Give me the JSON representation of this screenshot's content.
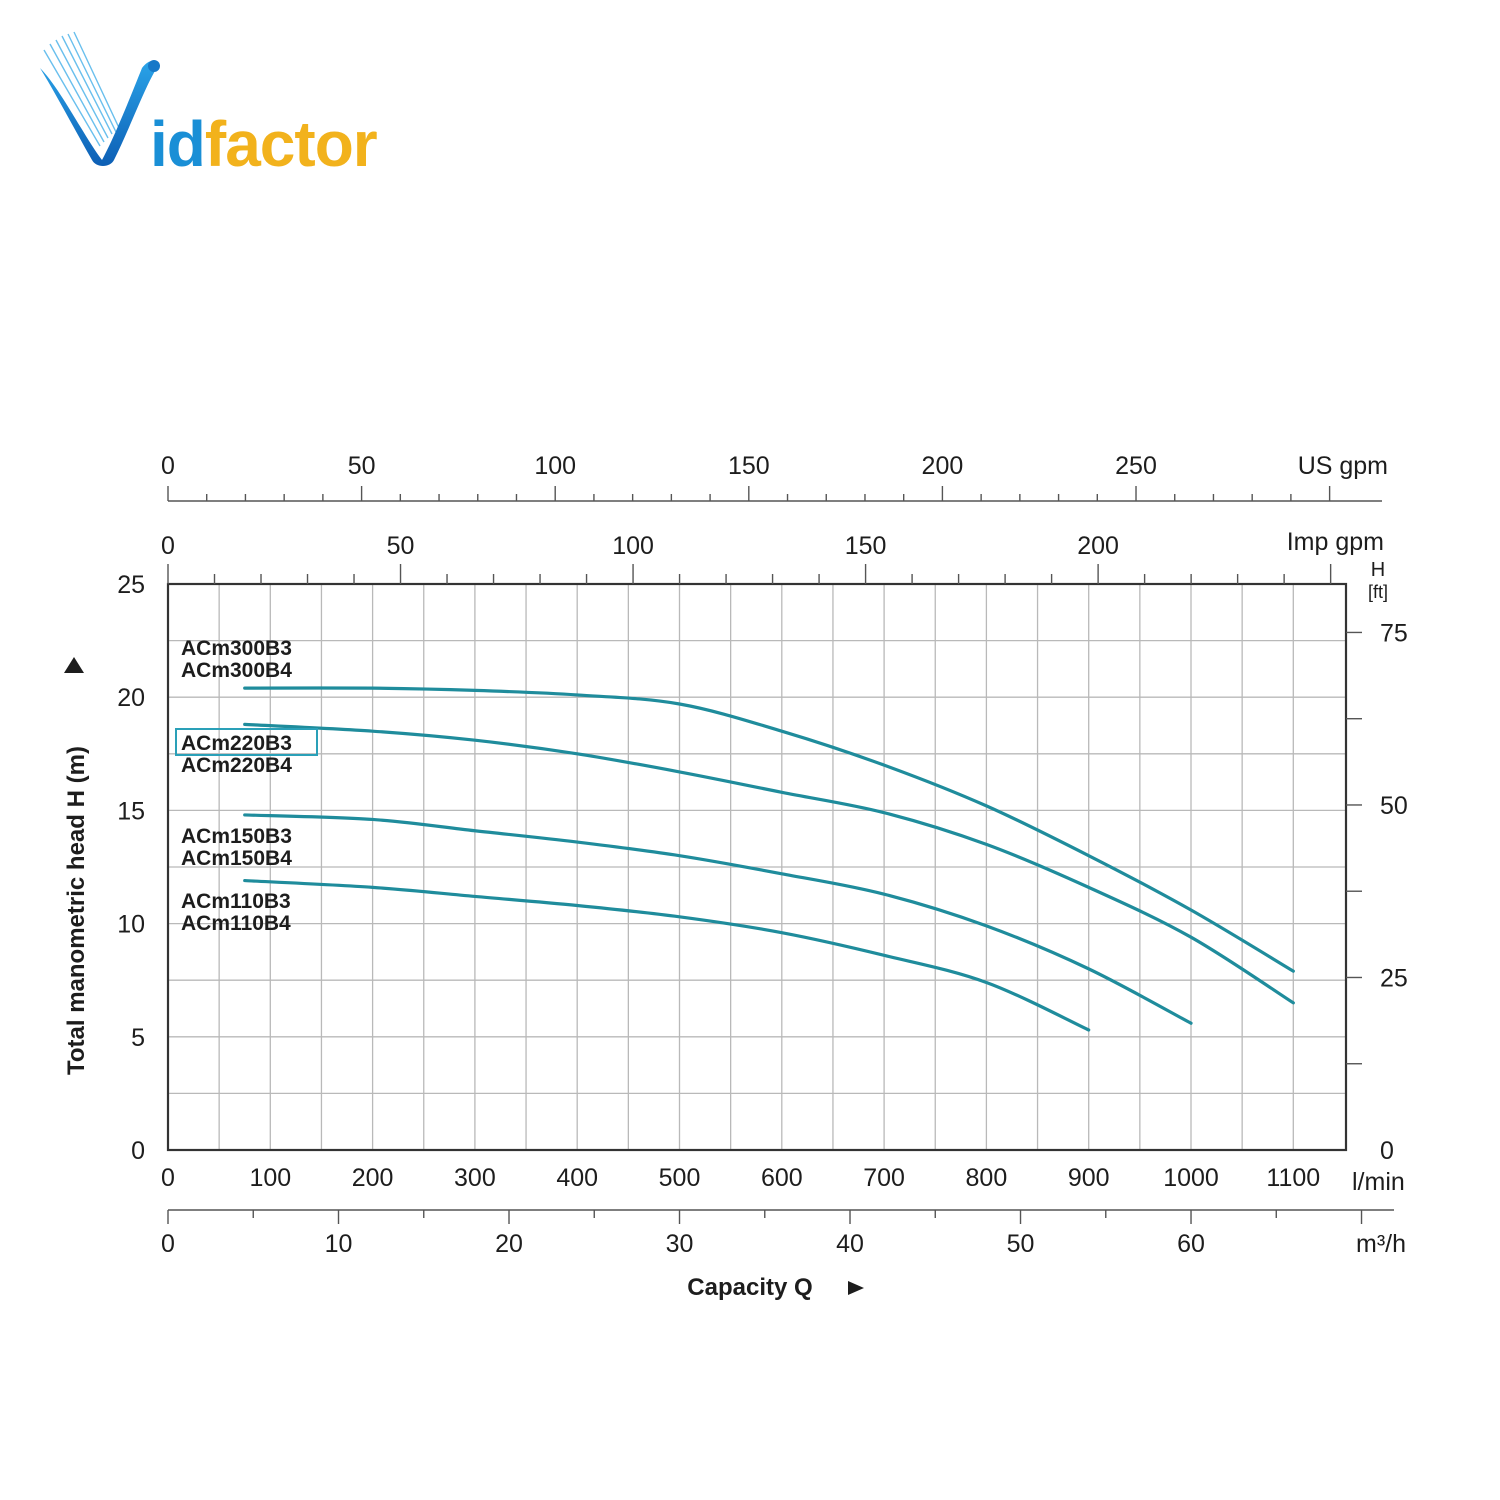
{
  "logo": {
    "text_i": "id",
    "text_rest": "factor",
    "colors": {
      "blue": "#1a8fd6",
      "yellow": "#f2b21c"
    }
  },
  "chart_data": {
    "type": "line",
    "title": "",
    "ylabel": "Total manometric head H (m)",
    "xlabel": "Capacity Q",
    "x_unit": "l/min",
    "xlim": [
      0,
      1150
    ],
    "ylim": [
      0,
      25
    ],
    "x_ticks": [
      "0",
      "100",
      "200",
      "300",
      "400",
      "500",
      "600",
      "700",
      "800",
      "900",
      "1000",
      "1100"
    ],
    "y_ticks": [
      "0",
      "5",
      "10",
      "15",
      "20",
      "25"
    ],
    "grid": true,
    "line_color": "#1f8c9c",
    "secondary_axes": {
      "us_gpm": {
        "label": "US gpm",
        "ticks": [
          "0",
          "50",
          "100",
          "150",
          "200",
          "250"
        ],
        "values": [
          0,
          50,
          100,
          150,
          200,
          250
        ],
        "lpm_per_unit": 3.785
      },
      "imp_gpm": {
        "label": "Imp gpm",
        "ticks": [
          "0",
          "50",
          "100",
          "150",
          "200"
        ],
        "values": [
          0,
          50,
          100,
          150,
          200
        ],
        "lpm_per_unit": 4.546
      },
      "m3h": {
        "label": "m³/h",
        "ticks": [
          "0",
          "10",
          "20",
          "30",
          "40",
          "50",
          "60"
        ],
        "values": [
          0,
          10,
          20,
          30,
          40,
          50,
          60
        ],
        "lpm_per_unit": 16.667
      },
      "h_ft": {
        "label_top": "H",
        "label_bottom": "[ft]",
        "ticks": [
          "0",
          "25",
          "50",
          "75"
        ],
        "values": [
          0,
          25,
          50,
          75
        ],
        "m_per_unit": 0.3048
      }
    },
    "series": [
      {
        "labels": [
          "ACm300B3",
          "ACm300B4"
        ],
        "highlight": false,
        "x": [
          75,
          200,
          300,
          400,
          500,
          600,
          700,
          800,
          900,
          1000,
          1100
        ],
        "y": [
          20.4,
          20.4,
          20.3,
          20.1,
          19.7,
          18.5,
          17.0,
          15.2,
          13.0,
          10.6,
          7.9
        ]
      },
      {
        "labels": [
          "ACm220B3",
          "ACm220B4"
        ],
        "highlight": true,
        "x": [
          75,
          200,
          300,
          400,
          500,
          600,
          700,
          800,
          900,
          1000,
          1100
        ],
        "y": [
          18.8,
          18.5,
          18.1,
          17.5,
          16.7,
          15.8,
          14.9,
          13.5,
          11.6,
          9.4,
          6.5
        ]
      },
      {
        "labels": [
          "ACm150B3",
          "ACm150B4"
        ],
        "highlight": false,
        "x": [
          75,
          200,
          300,
          400,
          500,
          600,
          700,
          800,
          900,
          1000
        ],
        "y": [
          14.8,
          14.6,
          14.1,
          13.6,
          13.0,
          12.2,
          11.3,
          9.9,
          8.0,
          5.6
        ]
      },
      {
        "labels": [
          "ACm110B3",
          "ACm110B4"
        ],
        "highlight": false,
        "x": [
          75,
          200,
          300,
          400,
          500,
          600,
          700,
          800,
          900
        ],
        "y": [
          11.9,
          11.6,
          11.2,
          10.8,
          10.3,
          9.6,
          8.6,
          7.4,
          5.3
        ]
      }
    ]
  }
}
